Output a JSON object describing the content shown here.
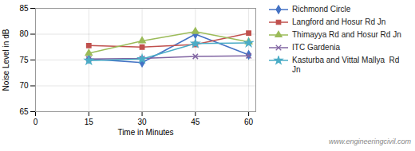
{
  "chart_data": {
    "type": "line",
    "xlabel": "Time in Minutes",
    "ylabel": "Noise Level in dB",
    "x": [
      15,
      30,
      45,
      60
    ],
    "series": [
      {
        "name": "Richmond Circle",
        "color": "#4472C4",
        "marker": "diamond",
        "values": [
          75.2,
          74.5,
          80.0,
          76.0
        ]
      },
      {
        "name": "Langford and Hosur Rd Jn",
        "color": "#C0504D",
        "marker": "square",
        "values": [
          77.8,
          77.5,
          78.0,
          80.2
        ]
      },
      {
        "name": "Thimayya Rd and Hosur Rd Jn",
        "color": "#9BBB59",
        "marker": "triangle",
        "values": [
          76.3,
          78.7,
          80.5,
          78.5
        ]
      },
      {
        "name": "ITC Gardenia",
        "color": "#8064A2",
        "marker": "x",
        "values": [
          75.2,
          75.3,
          75.7,
          75.8
        ]
      },
      {
        "name": "Kasturba and Vittal Mallya  Rd\nJn",
        "color": "#4BACC6",
        "marker": "star",
        "values": [
          74.9,
          75.2,
          78.2,
          78.3
        ]
      }
    ],
    "xlim": [
      0,
      62
    ],
    "ylim": [
      65,
      85
    ],
    "xticks": [
      0,
      15,
      30,
      45,
      60
    ],
    "yticks": [
      65,
      70,
      75,
      80,
      85
    ],
    "grid": true,
    "legend": "right",
    "annotations": [
      "www.engineeringcivil.com"
    ]
  }
}
